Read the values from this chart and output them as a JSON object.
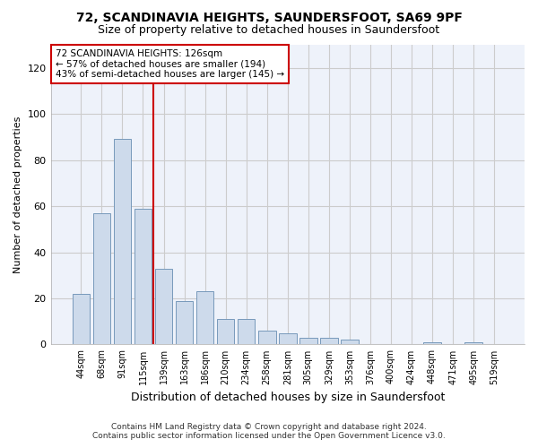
{
  "title": "72, SCANDINAVIA HEIGHTS, SAUNDERSFOOT, SA69 9PF",
  "subtitle": "Size of property relative to detached houses in Saundersfoot",
  "xlabel": "Distribution of detached houses by size in Saundersfoot",
  "ylabel": "Number of detached properties",
  "footer_line1": "Contains HM Land Registry data © Crown copyright and database right 2024.",
  "footer_line2": "Contains public sector information licensed under the Open Government Licence v3.0.",
  "annotation_line1": "72 SCANDINAVIA HEIGHTS: 126sqm",
  "annotation_line2": "← 57% of detached houses are smaller (194)",
  "annotation_line3": "43% of semi-detached houses are larger (145) →",
  "bar_color": "#cddaeb",
  "bar_edge_color": "#7799bb",
  "vline_color": "#cc0000",
  "vline_x": 3.5,
  "categories": [
    "44sqm",
    "68sqm",
    "91sqm",
    "115sqm",
    "139sqm",
    "163sqm",
    "186sqm",
    "210sqm",
    "234sqm",
    "258sqm",
    "281sqm",
    "305sqm",
    "329sqm",
    "353sqm",
    "376sqm",
    "400sqm",
    "424sqm",
    "448sqm",
    "471sqm",
    "495sqm",
    "519sqm"
  ],
  "values": [
    22,
    57,
    89,
    59,
    33,
    19,
    23,
    11,
    11,
    6,
    5,
    3,
    3,
    2,
    0,
    0,
    0,
    1,
    0,
    1,
    0
  ],
  "ylim": [
    0,
    130
  ],
  "yticks": [
    0,
    20,
    40,
    60,
    80,
    100,
    120
  ],
  "grid_color": "#cccccc",
  "bg_color": "#eef2fa",
  "fig_bg_color": "#ffffff",
  "figsize": [
    6.0,
    5.0
  ],
  "dpi": 100,
  "title_fontsize": 10,
  "subtitle_fontsize": 9,
  "xlabel_fontsize": 9,
  "ylabel_fontsize": 8,
  "tick_fontsize": 8,
  "xtick_fontsize": 7,
  "footer_fontsize": 6.5,
  "ann_fontsize": 7.5
}
